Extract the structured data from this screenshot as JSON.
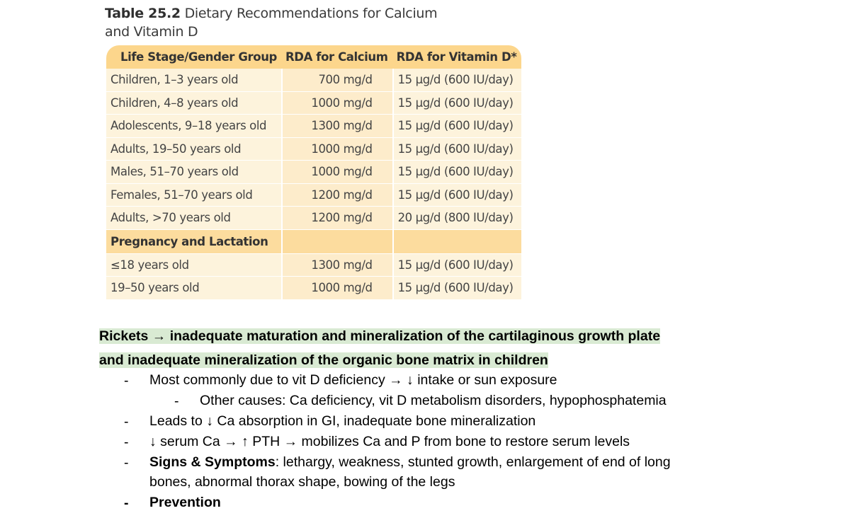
{
  "table": {
    "title_number": "Table 25.2",
    "title_line1": "Dietary Recommendations for Calcium",
    "title_line2": "and Vitamin D",
    "headers": [
      "Life Stage/Gender Group",
      "RDA for Calcium",
      "RDA for Vitamin D*"
    ],
    "rows": [
      [
        "Children, 1–3 years old",
        "700 mg/d",
        "15 µg/d (600 IU/day)"
      ],
      [
        "Children, 4–8 years old",
        "1000 mg/d",
        "15 µg/d (600 IU/day)"
      ],
      [
        "Adolescents, 9–18 years old",
        "1300 mg/d",
        "15 µg/d (600 IU/day)"
      ],
      [
        "Adults, 19–50 years old",
        "1000 mg/d",
        "15 µg/d (600 IU/day)"
      ],
      [
        "Males, 51–70 years old",
        "1000 mg/d",
        "15 µg/d (600 IU/day)"
      ],
      [
        "Females, 51–70 years old",
        "1200 mg/d",
        "15 µg/d (600 IU/day)"
      ],
      [
        "Adults, >70 years old",
        "1200 mg/d",
        "20 µg/d (800 IU/day)"
      ]
    ],
    "section_label": "Pregnancy and Lactation",
    "section_rows": [
      [
        "≤18 years old",
        "1300 mg/d",
        "15 µg/d (600 IU/day)"
      ],
      [
        "19–50 years old",
        "1000 mg/d",
        "15 µg/d (600 IU/day)"
      ]
    ]
  },
  "notes": {
    "heading_line1": "Rickets → inadequate maturation and mineralization of the cartilaginous growth plate",
    "heading_line2": "and inadequate mineralization of the organic bone matrix in children",
    "bullet_marker": "-",
    "b1": "Most commonly due to vit D deficiency → ↓ intake or sun exposure",
    "b1_sub": "Other causes: Ca deficiency, vit D metabolism disorders, hypophosphatemia",
    "b2": "Leads to ↓ Ca absorption in GI, inadequate bone mineralization",
    "b3": "↓ serum Ca → ↑ PTH → mobilizes Ca and P from bone to restore serum levels",
    "b4_label": "Signs & Symptoms",
    "b4_text": ": lethargy, weakness, stunted growth, enlargement of end of long",
    "b4_text2": "bones, abnormal thorax shape, bowing of the legs",
    "b5_label": "Prevention"
  },
  "colors": {
    "header_bg": "#fcd68c",
    "row_bg": "#fdf3dc",
    "highlight": "#d9ead3"
  }
}
